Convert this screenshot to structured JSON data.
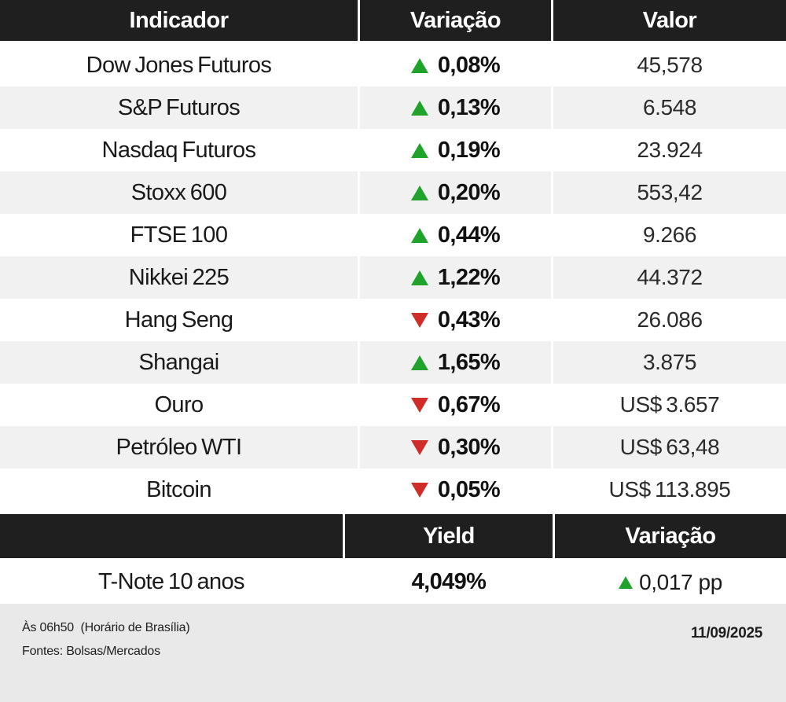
{
  "colors": {
    "header_bg": "#1F1F1F",
    "header_text": "#FFFFFF",
    "row_bg": "#FFFFFF",
    "row_alt_bg": "#F1F1F1",
    "footer_bg": "#E9E9E9",
    "up_green": "#1FA32B",
    "down_red": "#D02C28"
  },
  "chart_data": [
    {
      "type": "table",
      "columns": [
        "Indicador",
        "Variação",
        "Valor"
      ],
      "rows": [
        {
          "indicator": "Dow Jones Futuros",
          "direction": "up",
          "variation": "0,08%",
          "value": "45,578"
        },
        {
          "indicator": "S&P Futuros",
          "direction": "up",
          "variation": "0,13%",
          "value": "6.548"
        },
        {
          "indicator": "Nasdaq Futuros",
          "direction": "up",
          "variation": "0,19%",
          "value": "23.924"
        },
        {
          "indicator": "Stoxx 600",
          "direction": "up",
          "variation": "0,20%",
          "value": "553,42"
        },
        {
          "indicator": "FTSE 100",
          "direction": "up",
          "variation": "0,44%",
          "value": "9.266"
        },
        {
          "indicator": "Nikkei 225",
          "direction": "up",
          "variation": "1,22%",
          "value": "44.372"
        },
        {
          "indicator": "Hang Seng",
          "direction": "down",
          "variation": "0,43%",
          "value": "26.086"
        },
        {
          "indicator": "Shangai",
          "direction": "up",
          "variation": "1,65%",
          "value": "3.875"
        },
        {
          "indicator": "Ouro",
          "direction": "down",
          "variation": "0,67%",
          "value": "US$ 3.657"
        },
        {
          "indicator": "Petróleo WTI",
          "direction": "down",
          "variation": "0,30%",
          "value": "US$ 63,48"
        },
        {
          "indicator": "Bitcoin",
          "direction": "down",
          "variation": "0,05%",
          "value": "US$ 113.895"
        }
      ]
    },
    {
      "type": "table",
      "columns": [
        "",
        "Yield",
        "Variação"
      ],
      "rows": [
        {
          "indicator": "T-Note 10 anos",
          "yield": "4,049%",
          "direction": "up",
          "variation": "0,017 pp"
        }
      ]
    }
  ],
  "footer": {
    "time_note": "Às 06h50  (Horário de Brasília)",
    "sources": "Fontes: Bolsas/Mercados",
    "date": "11/09/2025"
  }
}
